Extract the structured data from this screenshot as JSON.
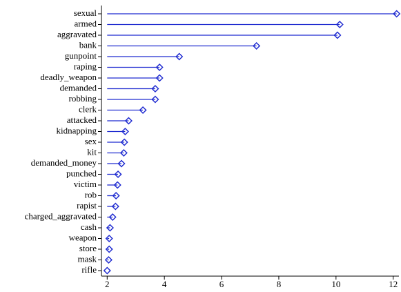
{
  "chart_data": {
    "type": "lollipop",
    "categories": [
      "sexual",
      "armed",
      "aggravated",
      "bank",
      "gunpoint",
      "raping",
      "deadly_weapon",
      "demanded",
      "robbing",
      "clerk",
      "attacked",
      "kidnapping",
      "sex",
      "kit",
      "demanded_money",
      "punched",
      "victim",
      "rob",
      "rapist",
      "charged_aggravated",
      "cash",
      "weapon",
      "store",
      "mask",
      "rifle"
    ],
    "values": [
      12.12,
      10.13,
      10.05,
      7.22,
      4.52,
      3.83,
      3.83,
      3.68,
      3.68,
      3.25,
      2.75,
      2.63,
      2.6,
      2.58,
      2.5,
      2.38,
      2.36,
      2.31,
      2.29,
      2.19,
      2.1,
      2.07,
      2.07,
      2.05,
      2.0
    ],
    "color": "#1f2bd0",
    "xlim": [
      1.8,
      12.2
    ],
    "xticks": [
      2,
      4,
      6,
      8,
      10,
      12
    ]
  }
}
